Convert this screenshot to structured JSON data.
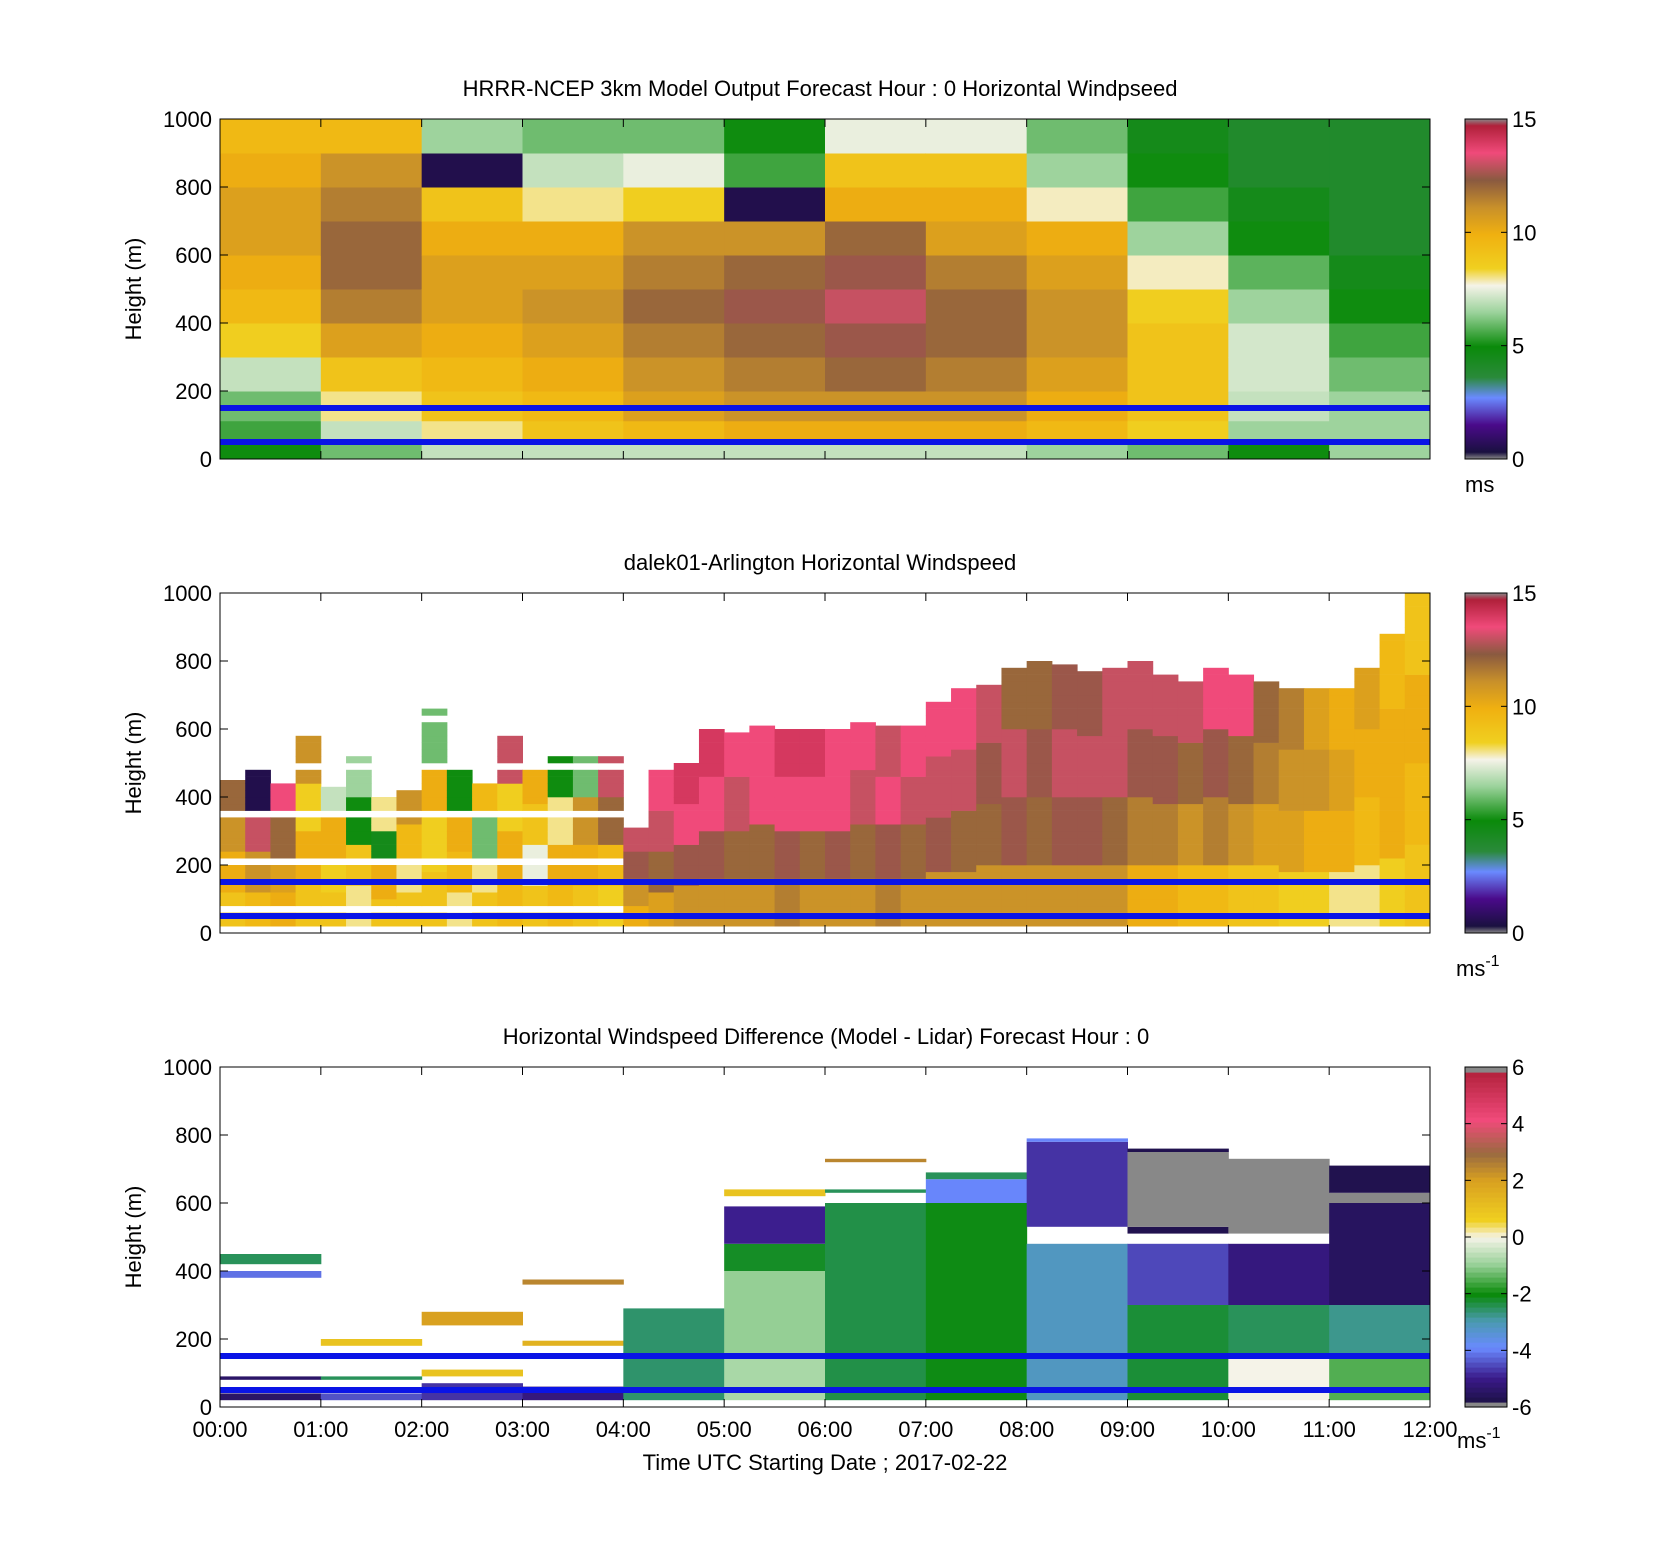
{
  "figure": {
    "xlabel": "Time UTC  Starting Date ; 2017-02-22",
    "x_ticks": [
      "00:00",
      "01:00",
      "02:00",
      "03:00",
      "04:00",
      "05:00",
      "06:00",
      "07:00",
      "08:00",
      "09:00",
      "10:00",
      "11:00",
      "12:00"
    ]
  },
  "chart_data": [
    {
      "type": "heatmap",
      "title": "HRRR-NCEP 3km Model Output   Forecast Hour : 0 Horizontal Windpseed",
      "ylabel": "Height (m)",
      "xlim": [
        0,
        12
      ],
      "ylim": [
        0,
        1000
      ],
      "y_ticks": [
        "0",
        "200",
        "400",
        "600",
        "800",
        "1000"
      ],
      "colorbar": {
        "ticks": [
          "0",
          "5",
          "10",
          "15"
        ],
        "range": [
          0,
          15
        ],
        "unit_label": "ms",
        "unit_sup": ""
      },
      "reference_lines_m": [
        50,
        150
      ],
      "height_levels_m": [
        25,
        75,
        150,
        250,
        350,
        450,
        550,
        650,
        750,
        850,
        950
      ],
      "columns": [
        {
          "t_start": 0,
          "t_end": 1,
          "values": [
            5,
            5.5,
            6,
            7,
            8.5,
            9.5,
            10,
            10.5,
            10.5,
            10,
            9.5
          ]
        },
        {
          "t_start": 1,
          "t_end": 2,
          "values": [
            6,
            7,
            8,
            9,
            10.5,
            11.5,
            12,
            12,
            11.5,
            11,
            9.5
          ]
        },
        {
          "t_start": 2,
          "t_end": 3,
          "values": [
            7,
            8,
            9,
            9.5,
            10,
            10.5,
            10.5,
            10,
            9,
            0.5,
            6.5
          ]
        },
        {
          "t_start": 3,
          "t_end": 4,
          "values": [
            7,
            9,
            9.5,
            10,
            10.5,
            11,
            10.5,
            10,
            8,
            7,
            6
          ]
        },
        {
          "t_start": 4,
          "t_end": 5,
          "values": [
            7,
            9.5,
            10.5,
            11,
            11.5,
            12,
            11.5,
            11,
            8.5,
            7.5,
            6
          ]
        },
        {
          "t_start": 5,
          "t_end": 6,
          "values": [
            7,
            10,
            11,
            11.5,
            12,
            12.5,
            12,
            11,
            0.5,
            5.5,
            5
          ]
        },
        {
          "t_start": 6,
          "t_end": 7,
          "values": [
            7,
            10,
            11,
            12,
            12.5,
            13,
            12.5,
            12,
            10,
            9,
            7.5
          ]
        },
        {
          "t_start": 7,
          "t_end": 8,
          "values": [
            7,
            10,
            11,
            11.5,
            12,
            12,
            11.5,
            10.5,
            10,
            9,
            7.5
          ]
        },
        {
          "t_start": 8,
          "t_end": 9,
          "values": [
            6.5,
            9.5,
            10,
            10.5,
            11,
            11,
            10.5,
            10,
            7.8,
            6.5,
            6
          ]
        },
        {
          "t_start": 9,
          "t_end": 10,
          "values": [
            6,
            8.5,
            9,
            9,
            9,
            8.5,
            7.8,
            6.5,
            5.5,
            5,
            4.5
          ]
        },
        {
          "t_start": 10,
          "t_end": 11,
          "values": [
            5,
            6.5,
            7,
            7.2,
            7.2,
            6.5,
            5.8,
            5,
            4.5,
            4,
            4
          ]
        },
        {
          "t_start": 11,
          "t_end": 12,
          "values": [
            6.5,
            6.5,
            6.5,
            6,
            5.5,
            5,
            4.5,
            4,
            4,
            4,
            4
          ]
        }
      ]
    },
    {
      "type": "heatmap",
      "title": "dalek01-Arlington  Horizontal Windspeed",
      "ylabel": "Height (m)",
      "xlim": [
        0,
        12
      ],
      "ylim": [
        0,
        1000
      ],
      "y_ticks": [
        "0",
        "200",
        "400",
        "600",
        "800",
        "1000"
      ],
      "colorbar": {
        "ticks": [
          "0",
          "5",
          "10",
          "15"
        ],
        "range": [
          0,
          15
        ],
        "unit_label": "ms",
        "unit_sup": "-1"
      },
      "reference_lines_m": [
        50,
        150
      ],
      "column_width_h": 0.25,
      "columns": [
        {
          "t": 0.0,
          "top": 450,
          "v": [
            9,
            10,
            11,
            12
          ]
        },
        {
          "t": 0.25,
          "top": 480,
          "v": [
            9.5,
            11,
            13,
            0.5
          ]
        },
        {
          "t": 0.5,
          "top": 440,
          "v": [
            10,
            10.5,
            12,
            13.5
          ]
        },
        {
          "t": 0.75,
          "top": 580,
          "v": [
            9,
            10,
            8.5,
            11
          ]
        },
        {
          "t": 1.0,
          "top": 430,
          "v": [
            9,
            8.5,
            10,
            7
          ]
        },
        {
          "t": 1.25,
          "top": 520,
          "v": [
            8,
            9,
            5,
            6.5
          ]
        },
        {
          "t": 1.5,
          "top": 400,
          "v": [
            9,
            10,
            4.5,
            8
          ]
        },
        {
          "t": 1.75,
          "top": 420,
          "v": [
            9,
            8,
            9.5,
            11
          ]
        },
        {
          "t": 2.0,
          "top": 660,
          "v": [
            9,
            8.5,
            10,
            6
          ]
        },
        {
          "t": 2.25,
          "top": 480,
          "v": [
            8,
            9.5,
            10,
            5
          ]
        },
        {
          "t": 2.5,
          "top": 440,
          "v": [
            9,
            8,
            6,
            9.5
          ]
        },
        {
          "t": 2.75,
          "top": 580,
          "v": [
            9.5,
            10,
            8.5,
            13
          ]
        },
        {
          "t": 3.0,
          "top": 500,
          "v": [
            9,
            7.5,
            9,
            10
          ]
        },
        {
          "t": 3.25,
          "top": 520,
          "v": [
            9.5,
            10,
            8,
            5
          ]
        },
        {
          "t": 3.5,
          "top": 520,
          "v": [
            9,
            10,
            11,
            6
          ]
        },
        {
          "t": 3.75,
          "top": 520,
          "v": [
            8.5,
            9.5,
            12,
            13
          ]
        },
        {
          "t": 4.0,
          "top": 310,
          "v": [
            10,
            11,
            12.5,
            13
          ]
        },
        {
          "t": 4.25,
          "top": 480,
          "v": [
            10.5,
            12,
            13,
            13.5
          ]
        },
        {
          "t": 4.5,
          "top": 500,
          "v": [
            11,
            12.5,
            13.5,
            14
          ]
        },
        {
          "t": 4.75,
          "top": 600,
          "v": [
            11,
            12.5,
            13.5,
            14
          ]
        },
        {
          "t": 5.0,
          "top": 590,
          "v": [
            11,
            12,
            13,
            13.5
          ]
        },
        {
          "t": 5.25,
          "top": 610,
          "v": [
            11,
            12,
            13.5,
            13.5
          ]
        },
        {
          "t": 5.5,
          "top": 600,
          "v": [
            11.5,
            12.5,
            13.5,
            14
          ]
        },
        {
          "t": 5.75,
          "top": 600,
          "v": [
            11,
            12,
            13.5,
            14
          ]
        },
        {
          "t": 6.0,
          "top": 600,
          "v": [
            11,
            12.5,
            13.5,
            13.5
          ]
        },
        {
          "t": 6.25,
          "top": 620,
          "v": [
            11,
            12,
            13,
            13.5
          ]
        },
        {
          "t": 6.5,
          "top": 610,
          "v": [
            11.5,
            12.5,
            13.5,
            13
          ]
        },
        {
          "t": 6.75,
          "top": 610,
          "v": [
            11,
            12,
            13,
            13.5
          ]
        },
        {
          "t": 7.0,
          "top": 680,
          "v": [
            11,
            12.5,
            13,
            13.5
          ]
        },
        {
          "t": 7.25,
          "top": 720,
          "v": [
            11,
            12,
            13,
            13.5
          ]
        },
        {
          "t": 7.5,
          "top": 730,
          "v": [
            11,
            12,
            12.5,
            13
          ]
        },
        {
          "t": 7.75,
          "top": 780,
          "v": [
            11,
            12.5,
            13,
            12
          ]
        },
        {
          "t": 8.0,
          "top": 800,
          "v": [
            11,
            12,
            12.5,
            12
          ]
        },
        {
          "t": 8.25,
          "top": 790,
          "v": [
            11,
            12.5,
            13,
            12.5
          ]
        },
        {
          "t": 8.5,
          "top": 770,
          "v": [
            11,
            12.5,
            13,
            12.5
          ]
        },
        {
          "t": 8.75,
          "top": 780,
          "v": [
            11,
            12,
            13,
            13
          ]
        },
        {
          "t": 9.0,
          "top": 800,
          "v": [
            10,
            11.5,
            12.5,
            13
          ]
        },
        {
          "t": 9.25,
          "top": 760,
          "v": [
            10,
            11.5,
            12.5,
            13
          ]
        },
        {
          "t": 9.5,
          "top": 740,
          "v": [
            9.5,
            11,
            12,
            13
          ]
        },
        {
          "t": 9.75,
          "top": 780,
          "v": [
            9.5,
            11.5,
            12.5,
            13.5
          ]
        },
        {
          "t": 10.0,
          "top": 760,
          "v": [
            9,
            11,
            12,
            13.5
          ]
        },
        {
          "t": 10.25,
          "top": 740,
          "v": [
            9,
            10.5,
            11.5,
            12
          ]
        },
        {
          "t": 10.5,
          "top": 720,
          "v": [
            8.5,
            10.5,
            11,
            11.5
          ]
        },
        {
          "t": 10.75,
          "top": 720,
          "v": [
            8.5,
            10,
            11,
            10.5
          ]
        },
        {
          "t": 11.0,
          "top": 720,
          "v": [
            8,
            10,
            10.5,
            10
          ]
        },
        {
          "t": 11.25,
          "top": 780,
          "v": [
            8,
            9.5,
            10,
            10.5
          ]
        },
        {
          "t": 11.5,
          "top": 880,
          "v": [
            8.5,
            10,
            10,
            9.5
          ]
        },
        {
          "t": 11.75,
          "top": 1000,
          "v": [
            9,
            9.5,
            10,
            9
          ]
        }
      ]
    },
    {
      "type": "heatmap",
      "title": "Horizontal Windspeed Difference (Model - Lidar) Forecast Hour : 0",
      "ylabel": "Height (m)",
      "xlim": [
        0,
        12
      ],
      "ylim": [
        0,
        1000
      ],
      "y_ticks": [
        "0",
        "200",
        "400",
        "600",
        "800",
        "1000"
      ],
      "colorbar": {
        "ticks": [
          "-6",
          "-4",
          "-2",
          "0",
          "2",
          "4",
          "6"
        ],
        "range": [
          -6,
          6
        ],
        "unit_label": "ms",
        "unit_sup": "-1"
      },
      "reference_lines_m": [
        50,
        150
      ],
      "blocks": [
        {
          "t0": 0,
          "t1": 1,
          "y0": 380,
          "y1": 400,
          "v": -4.2
        },
        {
          "t0": 0,
          "t1": 1,
          "y0": 420,
          "y1": 450,
          "v": -2.5
        },
        {
          "t0": 0,
          "t1": 1,
          "y0": 20,
          "y1": 40,
          "v": -5.5
        },
        {
          "t0": 0,
          "t1": 1,
          "y0": 80,
          "y1": 90,
          "v": -5.5
        },
        {
          "t0": 1,
          "t1": 2,
          "y0": 180,
          "y1": 200,
          "v": 1
        },
        {
          "t0": 1,
          "t1": 2,
          "y0": 20,
          "y1": 40,
          "v": -4.5
        },
        {
          "t0": 1,
          "t1": 2,
          "y0": 80,
          "y1": 90,
          "v": -2.5
        },
        {
          "t0": 2,
          "t1": 3,
          "y0": 240,
          "y1": 280,
          "v": 2
        },
        {
          "t0": 2,
          "t1": 3,
          "y0": 90,
          "y1": 110,
          "v": 1
        },
        {
          "t0": 2,
          "t1": 3,
          "y0": 20,
          "y1": 70,
          "v": -4.8
        },
        {
          "t0": 3,
          "t1": 4,
          "y0": 360,
          "y1": 375,
          "v": 2.5
        },
        {
          "t0": 3,
          "t1": 4,
          "y0": 180,
          "y1": 195,
          "v": 1.5
        },
        {
          "t0": 3,
          "t1": 4,
          "y0": 20,
          "y1": 60,
          "v": -5.2
        },
        {
          "t0": 4,
          "t1": 5,
          "y0": 20,
          "y1": 290,
          "v": -2.6
        },
        {
          "t0": 5,
          "t1": 6,
          "y0": 20,
          "y1": 150,
          "v": -0.8
        },
        {
          "t0": 5,
          "t1": 6,
          "y0": 150,
          "y1": 400,
          "v": -1
        },
        {
          "t0": 5,
          "t1": 6,
          "y0": 400,
          "y1": 480,
          "v": -2.2
        },
        {
          "t0": 5,
          "t1": 6,
          "y0": 480,
          "y1": 590,
          "v": -5
        },
        {
          "t0": 5,
          "t1": 6,
          "y0": 620,
          "y1": 640,
          "v": 1
        },
        {
          "t0": 6,
          "t1": 7,
          "y0": 20,
          "y1": 600,
          "v": -2.4
        },
        {
          "t0": 6,
          "t1": 7,
          "y0": 630,
          "y1": 640,
          "v": -2.5
        },
        {
          "t0": 6,
          "t1": 7,
          "y0": 720,
          "y1": 730,
          "v": 2.5
        },
        {
          "t0": 7,
          "t1": 8,
          "y0": 20,
          "y1": 600,
          "v": -2.1
        },
        {
          "t0": 7,
          "t1": 8,
          "y0": 600,
          "y1": 670,
          "v": -4
        },
        {
          "t0": 7,
          "t1": 8,
          "y0": 670,
          "y1": 690,
          "v": -2.5
        },
        {
          "t0": 8,
          "t1": 9,
          "y0": 20,
          "y1": 480,
          "v": -3.2
        },
        {
          "t0": 8,
          "t1": 9,
          "y0": 530,
          "y1": 780,
          "v": -4.8
        },
        {
          "t0": 8,
          "t1": 9,
          "y0": 780,
          "y1": 790,
          "v": -4
        },
        {
          "t0": 9,
          "t1": 10,
          "y0": 20,
          "y1": 300,
          "v": -2.3
        },
        {
          "t0": 9,
          "t1": 10,
          "y0": 300,
          "y1": 480,
          "v": -4.6
        },
        {
          "t0": 9,
          "t1": 10,
          "y0": 510,
          "y1": 530,
          "v": -5.8
        },
        {
          "t0": 9,
          "t1": 10,
          "y0": 530,
          "y1": 750,
          "v": 7
        },
        {
          "t0": 9,
          "t1": 10,
          "y0": 750,
          "y1": 760,
          "v": -5.8
        },
        {
          "t0": 10,
          "t1": 11,
          "y0": 20,
          "y1": 150,
          "v": 0
        },
        {
          "t0": 10,
          "t1": 11,
          "y0": 150,
          "y1": 300,
          "v": -2.5
        },
        {
          "t0": 10,
          "t1": 11,
          "y0": 300,
          "y1": 480,
          "v": -5.2
        },
        {
          "t0": 10,
          "t1": 11,
          "y0": 510,
          "y1": 730,
          "v": 7
        },
        {
          "t0": 11,
          "t1": 12,
          "y0": 20,
          "y1": 150,
          "v": -1.5
        },
        {
          "t0": 11,
          "t1": 12,
          "y0": 150,
          "y1": 300,
          "v": -2.8
        },
        {
          "t0": 11,
          "t1": 12,
          "y0": 300,
          "y1": 600,
          "v": -5.6
        },
        {
          "t0": 11,
          "t1": 12,
          "y0": 600,
          "y1": 630,
          "v": 7
        },
        {
          "t0": 11,
          "t1": 12,
          "y0": 630,
          "y1": 710,
          "v": -5.8
        }
      ]
    }
  ]
}
